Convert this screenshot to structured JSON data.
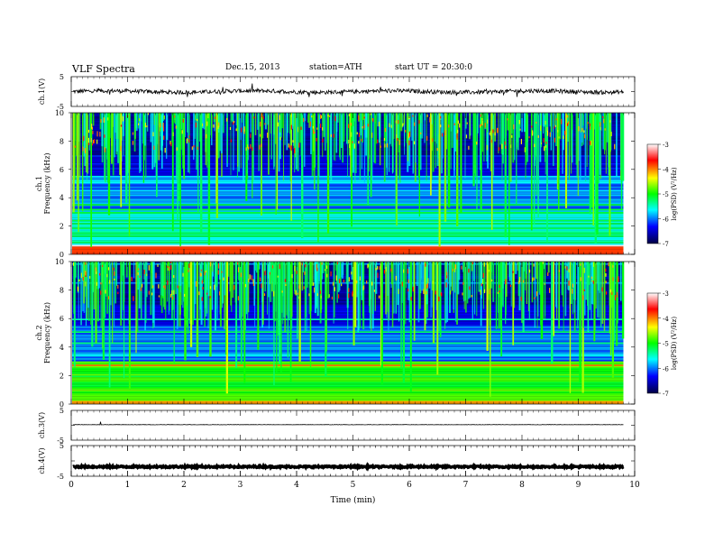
{
  "header": {
    "title": "VLF  Spectra",
    "date": "Dec.15, 2013",
    "station": "station=ATH",
    "start": "start  UT  =   20:30:0"
  },
  "colorbar": {
    "label": "log(PSD) (V²/Hz)",
    "ticks": [
      "-3",
      "-4",
      "-5",
      "-6",
      "-7"
    ],
    "colors": [
      "#ffffff",
      "#ff0000",
      "#ffff00",
      "#00ff00",
      "#00ffff",
      "#0000ff",
      "#000044"
    ]
  },
  "chart_data": [
    {
      "type": "line",
      "ylabel": "ch.1(V)",
      "ylim": [
        -5,
        5
      ],
      "yticks": [
        "5",
        "-5"
      ],
      "baseline": 0,
      "description_series": "noisy waveform around 0 V"
    },
    {
      "type": "heatmap",
      "ylabel": "ch.1\nFrequency (kHz)",
      "ylim": [
        0,
        10
      ],
      "yticks": [
        "0",
        "2",
        "4",
        "6",
        "8",
        "10"
      ],
      "xlim": [
        0,
        10
      ],
      "color_scale": [
        -7,
        -3
      ]
    },
    {
      "type": "heatmap",
      "ylabel": "ch.2\nFrequency (kHz)",
      "ylim": [
        0,
        10
      ],
      "yticks": [
        "0",
        "2",
        "4",
        "6",
        "8",
        "10"
      ],
      "xlim": [
        0,
        10
      ],
      "color_scale": [
        -7,
        -3
      ]
    },
    {
      "type": "line",
      "ylabel": "ch.3(V)",
      "ylim": [
        -5,
        5
      ],
      "yticks": [
        "5",
        "-5"
      ],
      "baseline": 0
    },
    {
      "type": "line",
      "ylabel": "ch.4(V)",
      "ylim": [
        -5,
        5
      ],
      "yticks": [
        "5",
        "-5"
      ],
      "baseline": 0
    }
  ],
  "xaxis": {
    "label": "Time  (min)",
    "ticks": [
      "0",
      "1",
      "2",
      "3",
      "4",
      "5",
      "6",
      "7",
      "8",
      "9",
      "10"
    ],
    "xlim": [
      0,
      10
    ],
    "data_end": 9.8
  }
}
